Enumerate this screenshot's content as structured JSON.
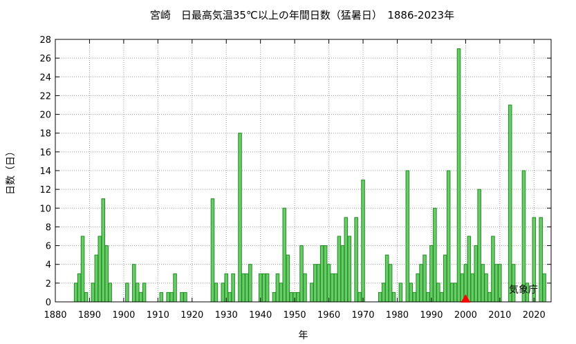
{
  "chart_data": {
    "type": "bar",
    "title": "宮崎　日最高気温35℃以上の年間日数（猛暑日）　1886-2023年",
    "xlabel": "年",
    "ylabel": "日数（日）",
    "credit": "気象庁",
    "xlim": [
      1880,
      2025
    ],
    "ylim": [
      0,
      28
    ],
    "x_ticks": [
      1880,
      1890,
      1900,
      1910,
      1920,
      1930,
      1940,
      1950,
      1960,
      1970,
      1980,
      1990,
      2000,
      2010,
      2020
    ],
    "y_ticks": [
      0,
      2,
      4,
      6,
      8,
      10,
      12,
      14,
      16,
      18,
      20,
      22,
      24,
      26,
      28
    ],
    "grid": true,
    "bar_color": "#66cc66",
    "bar_edge_color": "#228b22",
    "marker": {
      "year": 2000,
      "shape": "triangle",
      "color": "#ff0000"
    },
    "series": [
      {
        "x": [
          1886,
          1887,
          1888,
          1889,
          1890,
          1891,
          1892,
          1893,
          1894,
          1895,
          1896,
          1897,
          1898,
          1899,
          1900,
          1901,
          1902,
          1903,
          1904,
          1905,
          1906,
          1907,
          1908,
          1909,
          1910,
          1911,
          1912,
          1913,
          1914,
          1915,
          1916,
          1917,
          1918,
          1919,
          1920,
          1921,
          1922,
          1923,
          1924,
          1925,
          1926,
          1927,
          1928,
          1929,
          1930,
          1931,
          1932,
          1933,
          1934,
          1935,
          1936,
          1937,
          1938,
          1939,
          1940,
          1941,
          1942,
          1943,
          1944,
          1945,
          1946,
          1947,
          1948,
          1949,
          1950,
          1951,
          1952,
          1953,
          1954,
          1955,
          1956,
          1957,
          1958,
          1959,
          1960,
          1961,
          1962,
          1963,
          1964,
          1965,
          1966,
          1967,
          1968,
          1969,
          1970,
          1971,
          1972,
          1973,
          1974,
          1975,
          1976,
          1977,
          1978,
          1979,
          1980,
          1981,
          1982,
          1983,
          1984,
          1985,
          1986,
          1987,
          1988,
          1989,
          1990,
          1991,
          1992,
          1993,
          1994,
          1995,
          1996,
          1997,
          1998,
          1999,
          2000,
          2001,
          2002,
          2003,
          2004,
          2005,
          2006,
          2007,
          2008,
          2009,
          2010,
          2011,
          2012,
          2013,
          2014,
          2015,
          2016,
          2017,
          2018,
          2019,
          2020,
          2021,
          2022,
          2023
        ],
        "values": [
          2,
          3,
          7,
          1,
          0,
          2,
          5,
          7,
          11,
          6,
          2,
          0,
          0,
          0,
          0,
          2,
          0,
          4,
          2,
          1,
          2,
          0,
          0,
          0,
          0,
          1,
          0,
          1,
          1,
          3,
          0,
          1,
          1,
          0,
          0,
          0,
          0,
          0,
          0,
          0,
          11,
          2,
          0,
          2,
          3,
          1,
          3,
          0,
          18,
          3,
          3,
          4,
          0,
          0,
          3,
          3,
          3,
          0,
          1,
          3,
          2,
          10,
          5,
          1,
          1,
          1,
          6,
          3,
          0,
          2,
          4,
          4,
          6,
          6,
          4,
          3,
          3,
          7,
          6,
          9,
          7,
          0,
          9,
          1,
          13,
          0,
          0,
          0,
          0,
          1,
          2,
          5,
          4,
          1,
          0,
          2,
          0,
          14,
          2,
          1,
          3,
          4,
          5,
          1,
          6,
          10,
          2,
          1,
          5,
          14,
          2,
          2,
          27,
          3,
          4,
          7,
          3,
          6,
          12,
          4,
          3,
          1,
          7,
          4,
          4,
          0,
          0,
          21,
          4,
          0,
          0,
          14,
          2,
          0,
          9,
          0,
          9,
          3
        ]
      }
    ]
  }
}
